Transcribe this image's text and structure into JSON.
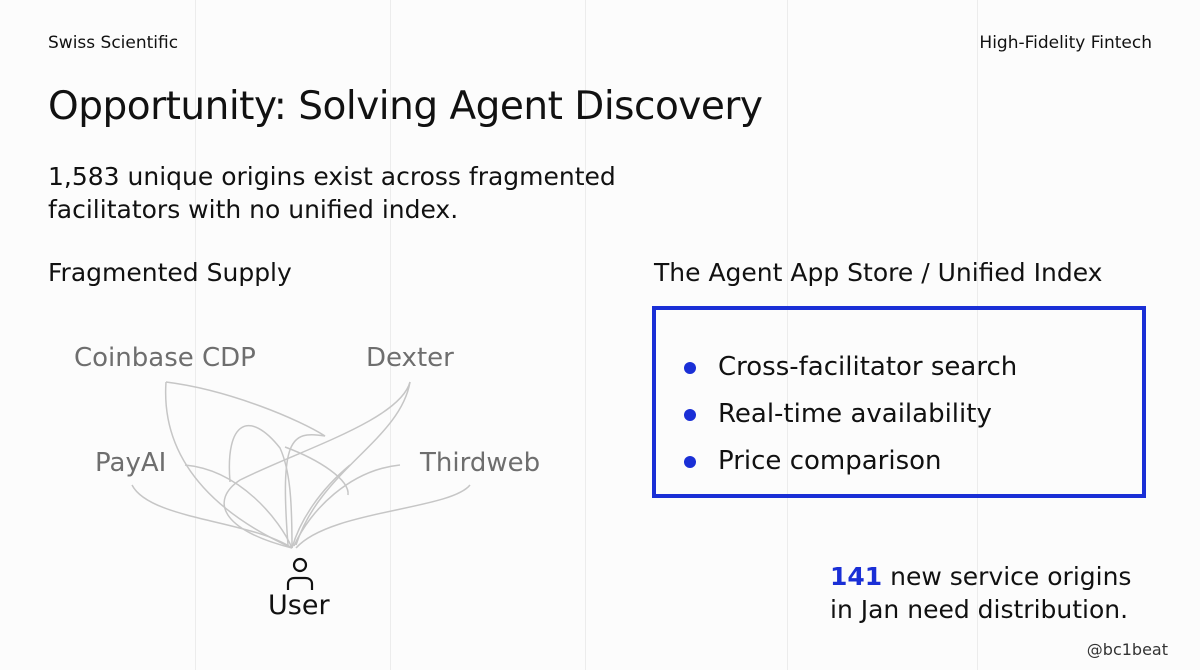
{
  "header": {
    "left": "Swiss Scientific",
    "right": "High-Fidelity Fintech"
  },
  "title": "Opportunity: Solving Agent Discovery",
  "subtitle": "1,583 unique origins exist across fragmented facilitators with no unified index.",
  "left_section": {
    "heading": "Fragmented Supply",
    "nodes": [
      "Coinbase CDP",
      "Dexter",
      "PayAI",
      "Thirdweb"
    ],
    "user_label": "User",
    "icons": {
      "user": "user-icon"
    }
  },
  "right_section": {
    "heading": "The Agent App Store / Unified Index",
    "bullets": [
      "Cross-facilitator search",
      "Real-time availability",
      "Price comparison"
    ]
  },
  "stat": {
    "number": "141",
    "text_line1": " new service origins",
    "text_line2": "in Jan need distribution."
  },
  "watermark": "@bc1beat",
  "colors": {
    "accent": "#1a2fd6",
    "lines": "#c4c4c4",
    "node_text": "#6e6e6e"
  }
}
